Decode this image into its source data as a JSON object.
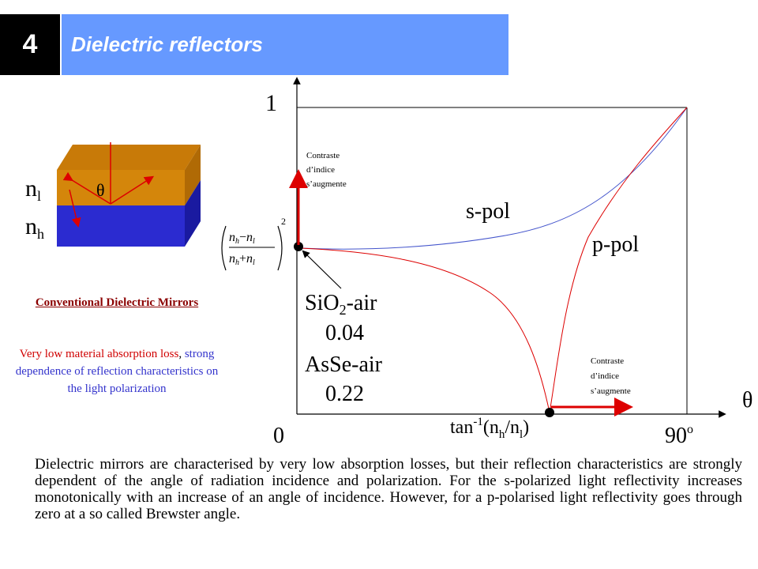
{
  "header": {
    "number": "4",
    "title": "Dielectric reflectors"
  },
  "layers": {
    "n_low": "n",
    "n_low_sub": "l",
    "n_high": "n",
    "n_high_sub": "h",
    "theta": "θ"
  },
  "caption": {
    "title": "Conventional Dielectric Mirrors",
    "body_red": "Very low material absorption loss",
    "body_sep": ", ",
    "body_blue": "strong dependence of reflection characteristics on the light polarization"
  },
  "graph": {
    "y_top_label": "1",
    "x_zero_label": "0",
    "x_end_label": "90",
    "x_end_sup": "o",
    "theta_axis": "θ",
    "s_pol": "s-pol",
    "p_pol": "p-pol",
    "contraste_top": [
      "Contraste",
      "d’indice",
      "s’augmente"
    ],
    "contraste_bottom": [
      "Contraste",
      "d’indice",
      "s’augmente"
    ],
    "sio2_label_a": "SiO",
    "sio2_label_sub": "2",
    "sio2_label_b": "-air",
    "sio2_value": "0.04",
    "asse_label": "AsSe-air",
    "asse_value": "0.22",
    "brewster_a": "tan",
    "brewster_sup": "-1",
    "brewster_b": "(n",
    "brewster_sub1": "h",
    "brewster_c": "/n",
    "brewster_sub2": "l",
    "brewster_d": ")",
    "formula_nh": "n",
    "formula_h": "h",
    "formula_minus": "−",
    "formula_plus": "+",
    "formula_nl": "n",
    "formula_l": "l",
    "formula_exp": "2"
  },
  "paragraph": "Dielectric mirrors are characterised by very low absorption losses, but their reflection characteristics are strongly dependent of the angle of radiation incidence and polarization. For the s-polarized light reflectivity increases monotonically with an increase of an angle of incidence. However, for a p-polarised light reflectivity goes through zero at a so called Brewster angle.",
  "colors": {
    "header_bar": "#6699ff",
    "s_pol_curve": "#4455cc",
    "p_pol_curve": "#dd0000",
    "arrow_red": "#dd0000",
    "layer_top": "#d4860b",
    "layer_bottom": "#2b2bd0"
  }
}
